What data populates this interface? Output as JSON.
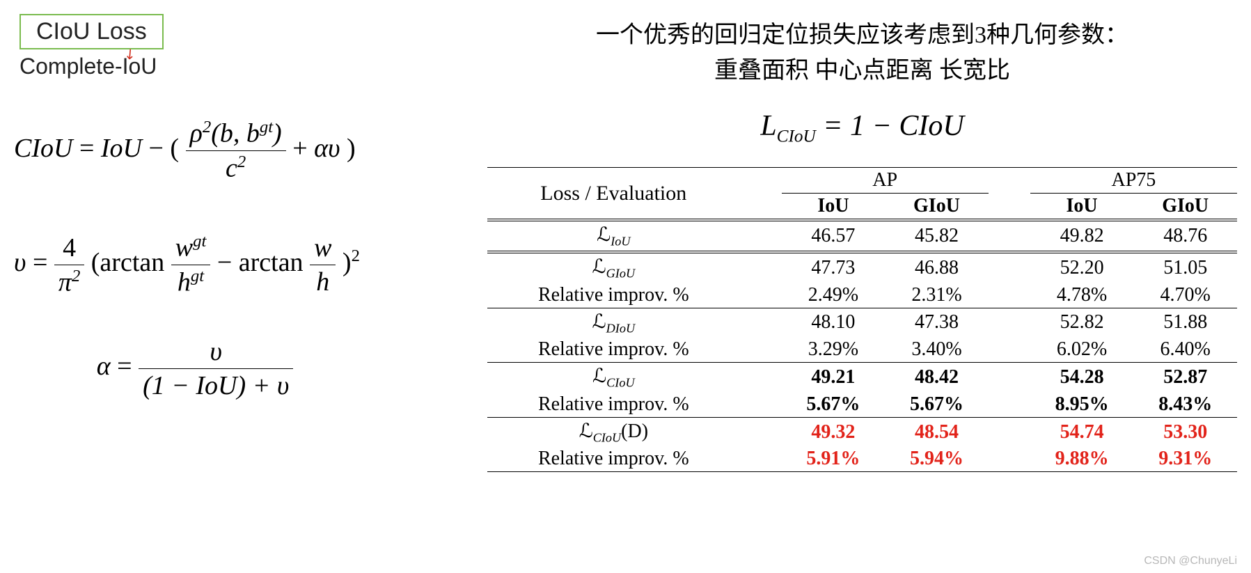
{
  "left": {
    "title": "CIoU Loss",
    "subtitle": "Complete-IoU",
    "title_border_color": "#7abb4e",
    "arrow_color": "#d03020",
    "formulas": {
      "ciou": {
        "lhs": "CIoU",
        "equals": "=",
        "iou": "IoU",
        "minus": "−",
        "lparen": "(",
        "num": "ρ²(b, bᵍᵗ)",
        "den": "c²",
        "plus": "+",
        "alpha_v": "αυ",
        "rparen": ")"
      },
      "v": {
        "lhs": "υ",
        "four": "4",
        "pi2": "π²",
        "arctan": "arctan",
        "wgt": "wᵍᵗ",
        "hgt": "hᵍᵗ",
        "w": "w",
        "h": "h",
        "sq": "2"
      },
      "alpha": {
        "lhs": "α",
        "num": "υ",
        "den": "(1 − IoU) + υ"
      }
    }
  },
  "right": {
    "header_line1": "一个优秀的回归定位损失应该考虑到3种几何参数：",
    "header_line2": "重叠面积   中心点距离   长宽比",
    "formula": {
      "L": "L",
      "sub": "CIoU",
      "eq": " = 1 − ",
      "rhs": "CIoU"
    }
  },
  "table": {
    "header": {
      "loss_eval": "Loss / Evaluation",
      "ap": "AP",
      "ap75": "AP75",
      "iou": "IoU",
      "giou": "GIoU"
    },
    "rows": [
      {
        "type": "main",
        "label_html": "ℒ<sub><i>IoU</i></sub>",
        "cells": [
          "46.57",
          "45.82",
          "49.82",
          "48.76"
        ],
        "bold": false,
        "red": false,
        "divider": "dbl"
      },
      {
        "type": "main",
        "label_html": "ℒ<sub><i>GIoU</i></sub>",
        "cells": [
          "47.73",
          "46.88",
          "52.20",
          "51.05"
        ],
        "bold": false,
        "red": false,
        "divider": "dbl"
      },
      {
        "type": "rel",
        "label": "Relative improv. %",
        "cells": [
          "2.49%",
          "2.31%",
          "4.78%",
          "4.70%"
        ],
        "bold": false,
        "red": false
      },
      {
        "type": "main",
        "label_html": "ℒ<sub><i>DIoU</i></sub>",
        "cells": [
          "48.10",
          "47.38",
          "52.82",
          "51.88"
        ],
        "bold": false,
        "red": false,
        "divider": "thin"
      },
      {
        "type": "rel",
        "label": "Relative improv. %",
        "cells": [
          "3.29%",
          "3.40%",
          "6.02%",
          "6.40%"
        ],
        "bold": false,
        "red": false
      },
      {
        "type": "main",
        "label_html": "ℒ<sub><i>CIoU</i></sub>",
        "cells": [
          "49.21",
          "48.42",
          "54.28",
          "52.87"
        ],
        "bold": true,
        "red": false,
        "divider": "thin"
      },
      {
        "type": "rel",
        "label": "Relative improv. %",
        "cells": [
          "5.67%",
          "5.67%",
          "8.95%",
          "8.43%"
        ],
        "bold": true,
        "red": false
      },
      {
        "type": "main",
        "label_html": "ℒ<sub><i>CIoU</i></sub>(D)",
        "cells": [
          "49.32",
          "48.54",
          "54.74",
          "53.30"
        ],
        "bold": true,
        "red": true,
        "divider": "thin"
      },
      {
        "type": "rel",
        "label": "Relative improv. %",
        "cells": [
          "5.91%",
          "5.94%",
          "9.88%",
          "9.31%"
        ],
        "bold": true,
        "red": true
      }
    ],
    "bottom_border": true
  },
  "colors": {
    "text": "#000000",
    "red": "#e2231a",
    "border": "#000000",
    "background": "#ffffff"
  },
  "watermark": "CSDN @ChunyeLi"
}
